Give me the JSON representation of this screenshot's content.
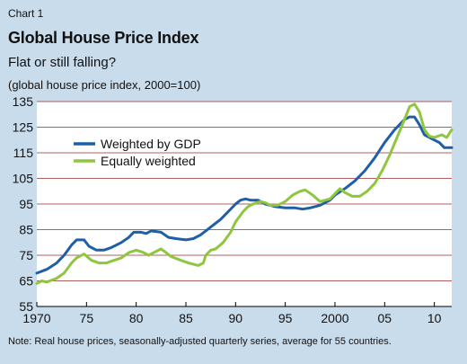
{
  "chart_label": "Chart 1",
  "chart_data": {
    "type": "line",
    "title": "Global House Price Index",
    "subtitle": "Flat or still falling?",
    "ylabel": "(global house price index, 2000=100)",
    "note": "Note: Real house prices, seasonally-adjusted quarterly series, average for 55 countries.",
    "xlim": [
      1970,
      2011.75
    ],
    "ylim": [
      55,
      135
    ],
    "yticks": [
      55,
      65,
      75,
      85,
      95,
      105,
      115,
      125,
      135
    ],
    "xticks": [
      {
        "value": 1970,
        "label": "1970"
      },
      {
        "value": 1975,
        "label": "75"
      },
      {
        "value": 1980,
        "label": "80"
      },
      {
        "value": 1985,
        "label": "85"
      },
      {
        "value": 1990,
        "label": "90"
      },
      {
        "value": 1995,
        "label": "95"
      },
      {
        "value": 2000,
        "label": "2000"
      },
      {
        "value": 2005,
        "label": "05"
      },
      {
        "value": 2010,
        "label": "10"
      }
    ],
    "grid": true,
    "legend_position": "upper-left",
    "series": [
      {
        "name": "Weighted by GDP",
        "color": "#1f5fa8",
        "points": [
          [
            1970,
            68
          ],
          [
            1971,
            69.5
          ],
          [
            1972,
            72
          ],
          [
            1972.75,
            75
          ],
          [
            1973.5,
            79
          ],
          [
            1974,
            81
          ],
          [
            1974.75,
            81
          ],
          [
            1975.25,
            78.5
          ],
          [
            1976,
            77
          ],
          [
            1976.75,
            77
          ],
          [
            1977.5,
            78
          ],
          [
            1978.5,
            80
          ],
          [
            1979.25,
            82
          ],
          [
            1979.75,
            84
          ],
          [
            1980.5,
            84
          ],
          [
            1981,
            83.5
          ],
          [
            1981.5,
            84.5
          ],
          [
            1982.5,
            84
          ],
          [
            1983.25,
            82
          ],
          [
            1984,
            81.5
          ],
          [
            1985,
            81
          ],
          [
            1985.75,
            81.5
          ],
          [
            1986.5,
            83
          ],
          [
            1987.5,
            86
          ],
          [
            1988.5,
            89
          ],
          [
            1989.25,
            92
          ],
          [
            1990,
            95
          ],
          [
            1990.5,
            96.5
          ],
          [
            1991,
            97
          ],
          [
            1991.5,
            96.5
          ],
          [
            1992.25,
            96.5
          ],
          [
            1993,
            95
          ],
          [
            1994,
            94
          ],
          [
            1995,
            93.5
          ],
          [
            1996,
            93.5
          ],
          [
            1996.75,
            93
          ],
          [
            1997.5,
            93.5
          ],
          [
            1998.5,
            94.5
          ],
          [
            1999.5,
            96.5
          ],
          [
            2000,
            98.5
          ],
          [
            2001,
            101
          ],
          [
            2002,
            104
          ],
          [
            2003,
            108
          ],
          [
            2004,
            113
          ],
          [
            2005,
            119
          ],
          [
            2006,
            124
          ],
          [
            2007,
            128
          ],
          [
            2007.5,
            129
          ],
          [
            2008,
            129
          ],
          [
            2008.5,
            126
          ],
          [
            2009,
            122
          ],
          [
            2009.5,
            121
          ],
          [
            2010,
            120
          ],
          [
            2010.5,
            119
          ],
          [
            2011,
            117
          ],
          [
            2011.75,
            117
          ]
        ]
      },
      {
        "name": "Equally weighted",
        "color": "#8ec63f",
        "points": [
          [
            1970,
            64
          ],
          [
            1970.5,
            65
          ],
          [
            1971,
            64.5
          ],
          [
            1972,
            66
          ],
          [
            1972.75,
            68
          ],
          [
            1973.5,
            72
          ],
          [
            1974,
            74
          ],
          [
            1974.75,
            75.5
          ],
          [
            1975.5,
            73
          ],
          [
            1976.25,
            72
          ],
          [
            1977,
            72
          ],
          [
            1977.75,
            73
          ],
          [
            1978.5,
            74
          ],
          [
            1979.25,
            76
          ],
          [
            1980,
            77
          ],
          [
            1980.75,
            76
          ],
          [
            1981.25,
            75
          ],
          [
            1982,
            76.5
          ],
          [
            1982.5,
            77.5
          ],
          [
            1983,
            76
          ],
          [
            1983.5,
            74.5
          ],
          [
            1984.5,
            73
          ],
          [
            1985.25,
            72
          ],
          [
            1986.25,
            71
          ],
          [
            1986.75,
            72
          ],
          [
            1987,
            75
          ],
          [
            1987.5,
            77
          ],
          [
            1988,
            77.5
          ],
          [
            1988.75,
            80
          ],
          [
            1989.5,
            84
          ],
          [
            1990,
            88
          ],
          [
            1990.75,
            92
          ],
          [
            1991.25,
            94
          ],
          [
            1991.75,
            95
          ],
          [
            1992.5,
            96
          ],
          [
            1993,
            95.5
          ],
          [
            1993.5,
            94.5
          ],
          [
            1994.25,
            94.5
          ],
          [
            1995,
            96
          ],
          [
            1995.75,
            98.5
          ],
          [
            1996.5,
            100
          ],
          [
            1997,
            100.5
          ],
          [
            1997.75,
            98.5
          ],
          [
            1998.5,
            96
          ],
          [
            1999.5,
            97
          ],
          [
            2000,
            99
          ],
          [
            2000.5,
            101
          ],
          [
            2001,
            99.5
          ],
          [
            2001.75,
            98
          ],
          [
            2002.5,
            98
          ],
          [
            2003.25,
            100
          ],
          [
            2004,
            103
          ],
          [
            2004.75,
            108
          ],
          [
            2005.5,
            114
          ],
          [
            2006.25,
            121
          ],
          [
            2007,
            128
          ],
          [
            2007.5,
            133
          ],
          [
            2008,
            134
          ],
          [
            2008.5,
            131
          ],
          [
            2009,
            124
          ],
          [
            2009.5,
            121.5
          ],
          [
            2010,
            121
          ],
          [
            2010.75,
            122
          ],
          [
            2011.25,
            121
          ],
          [
            2011.75,
            124
          ]
        ]
      }
    ]
  }
}
